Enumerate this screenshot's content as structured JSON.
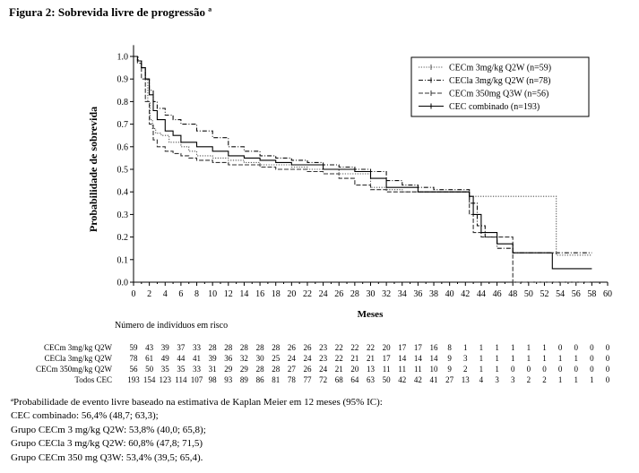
{
  "figure_title": "Figura 2: Sobrevida livre de progressão ª",
  "chart_data": {
    "type": "line",
    "title": "",
    "xlabel": "Meses",
    "ylabel": "Probabilidade de sobrevida",
    "xlim": [
      0,
      60
    ],
    "ylim": [
      0,
      1.05
    ],
    "xticks": [
      0,
      2,
      4,
      6,
      8,
      10,
      12,
      14,
      16,
      18,
      20,
      22,
      24,
      26,
      28,
      30,
      32,
      34,
      36,
      38,
      40,
      42,
      44,
      46,
      48,
      50,
      52,
      54,
      56,
      58,
      60
    ],
    "yticks": [
      0.0,
      0.1,
      0.2,
      0.3,
      0.4,
      0.5,
      0.6,
      0.7,
      0.8,
      0.9,
      1.0
    ],
    "grid": false,
    "legend_position": "top-right",
    "series": [
      {
        "name": "CECm 3mg/kg Q2W (n=59)",
        "color": "#555555",
        "dash": "dotted",
        "x": [
          0,
          0.6,
          1.0,
          1.5,
          1.8,
          2.1,
          2.4,
          2.8,
          3.5,
          4.5,
          6.0,
          7.0,
          8.0,
          10.0,
          12.0,
          14.0,
          16.0,
          18.0,
          20.0,
          22.0,
          26.0,
          30.0,
          32.0,
          34.0,
          42.0,
          42.5,
          43.0,
          53.0,
          53.5,
          58.0
        ],
        "y": [
          1.0,
          0.98,
          0.95,
          0.9,
          0.8,
          0.72,
          0.68,
          0.66,
          0.65,
          0.62,
          0.6,
          0.58,
          0.56,
          0.55,
          0.54,
          0.53,
          0.52,
          0.52,
          0.51,
          0.5,
          0.48,
          0.42,
          0.41,
          0.4,
          0.4,
          0.38,
          0.38,
          0.38,
          0.12,
          0.12
        ]
      },
      {
        "name": "CECla 3mg/kg Q2W (n=78)",
        "color": "#111111",
        "dash": "dashdot",
        "x": [
          0,
          0.5,
          1.0,
          1.5,
          2.0,
          2.5,
          3.0,
          4.0,
          5.0,
          6.0,
          8.0,
          10.0,
          12.0,
          14.0,
          16.0,
          18.0,
          20.0,
          22.0,
          24.0,
          26.0,
          28.0,
          30.0,
          32.0,
          34.0,
          36.0,
          38.0,
          40.0,
          42.0,
          42.5,
          43.5,
          44.5,
          46.0,
          48.0,
          58.0
        ],
        "y": [
          1.0,
          0.98,
          0.95,
          0.9,
          0.85,
          0.8,
          0.77,
          0.74,
          0.72,
          0.7,
          0.67,
          0.64,
          0.6,
          0.58,
          0.56,
          0.55,
          0.54,
          0.53,
          0.52,
          0.51,
          0.5,
          0.49,
          0.45,
          0.43,
          0.42,
          0.41,
          0.41,
          0.41,
          0.35,
          0.25,
          0.2,
          0.15,
          0.13,
          0.13
        ]
      },
      {
        "name": "CECm 350mg Q3W (n=56)",
        "color": "#333333",
        "dash": "dashed",
        "x": [
          0,
          0.5,
          1.0,
          1.5,
          2.0,
          2.5,
          3.0,
          4.0,
          5.0,
          6.0,
          7.0,
          8.0,
          10.0,
          12.0,
          14.0,
          16.0,
          18.0,
          20.0,
          22.0,
          24.0,
          26.0,
          28.0,
          30.0,
          32.0,
          36.0,
          38.0,
          40.0,
          42.0,
          42.5,
          43.0,
          44.0,
          48.0,
          58.0
        ],
        "y": [
          1.0,
          0.97,
          0.9,
          0.8,
          0.7,
          0.63,
          0.6,
          0.58,
          0.57,
          0.56,
          0.55,
          0.54,
          0.53,
          0.52,
          0.52,
          0.51,
          0.5,
          0.5,
          0.49,
          0.48,
          0.46,
          0.43,
          0.41,
          0.4,
          0.4,
          0.4,
          0.4,
          0.4,
          0.3,
          0.22,
          0.2,
          0.0,
          0.0
        ]
      },
      {
        "name": "CEC combinado (n=193)",
        "color": "#000000",
        "dash": "solid",
        "x": [
          0,
          0.5,
          1.0,
          1.5,
          2.0,
          2.5,
          3.0,
          4.0,
          5.0,
          6.0,
          8.0,
          10.0,
          12.0,
          14.0,
          16.0,
          18.0,
          20.0,
          24.0,
          28.0,
          30.0,
          32.0,
          36.0,
          40.0,
          42.0,
          42.5,
          43.0,
          44.0,
          46.0,
          48.0,
          53.0,
          58.0
        ],
        "y": [
          1.0,
          0.98,
          0.95,
          0.9,
          0.83,
          0.76,
          0.72,
          0.67,
          0.65,
          0.62,
          0.6,
          0.58,
          0.56,
          0.55,
          0.54,
          0.53,
          0.52,
          0.5,
          0.49,
          0.46,
          0.42,
          0.4,
          0.4,
          0.4,
          0.38,
          0.3,
          0.22,
          0.17,
          0.13,
          0.06,
          0.06
        ]
      }
    ]
  },
  "risk_table": {
    "title": "Número de indivíduos em risco",
    "times": [
      0,
      2,
      4,
      6,
      8,
      10,
      12,
      14,
      16,
      18,
      20,
      22,
      24,
      26,
      28,
      30,
      32,
      34,
      36,
      38,
      40,
      42,
      44,
      46,
      48,
      50,
      52,
      54,
      56,
      58,
      60
    ],
    "rows": [
      {
        "label": "CECm 3mg/kg Q2W",
        "values": [
          "59",
          "43",
          "39",
          "37",
          "33",
          "28",
          "28",
          "28",
          "28",
          "28",
          "26",
          "26",
          "23",
          "22",
          "22",
          "22",
          "20",
          "17",
          "17",
          "16",
          "8",
          "1",
          "1",
          "1",
          "1",
          "1",
          "1",
          "0",
          "0",
          "0",
          "0"
        ]
      },
      {
        "label": "CECla 3mg/kg Q2W",
        "values": [
          "78",
          "61",
          "49",
          "44",
          "41",
          "39",
          "36",
          "32",
          "30",
          "25",
          "24",
          "24",
          "23",
          "22",
          "21",
          "21",
          "17",
          "14",
          "14",
          "14",
          "9",
          "3",
          "1",
          "1",
          "1",
          "1",
          "1",
          "1",
          "1",
          "0",
          "0"
        ]
      },
      {
        "label": "CECm 350mg/kg Q2W",
        "values": [
          "56",
          "50",
          "35",
          "35",
          "33",
          "31",
          "29",
          "29",
          "28",
          "28",
          "27",
          "26",
          "24",
          "21",
          "20",
          "13",
          "11",
          "11",
          "11",
          "10",
          "9",
          "2",
          "1",
          "1",
          "0",
          "0",
          "0",
          "0",
          "0",
          "0",
          "0"
        ]
      },
      {
        "label": "Todos CEC",
        "values": [
          "193",
          "154",
          "123",
          "114",
          "107",
          "98",
          "93",
          "89",
          "86",
          "81",
          "78",
          "77",
          "72",
          "68",
          "64",
          "63",
          "50",
          "42",
          "42",
          "41",
          "27",
          "13",
          "4",
          "3",
          "3",
          "2",
          "2",
          "1",
          "1",
          "1",
          "0"
        ]
      }
    ]
  },
  "footnote": {
    "lines": [
      "ªProbabilidade de evento livre baseado na estimativa de Kaplan Meier em 12 meses (95% IC):",
      "CEC combinado: 56,4% (48,7; 63,3);",
      "Grupo CECm 3 mg/kg Q2W: 53,8% (40,0; 65,8);",
      "Grupo CECla 3 mg/kg Q2W: 60,8% (47,8; 71,5)",
      "Grupo CECm 350 mg Q3W: 53,4% (39,5; 65,4)."
    ]
  }
}
